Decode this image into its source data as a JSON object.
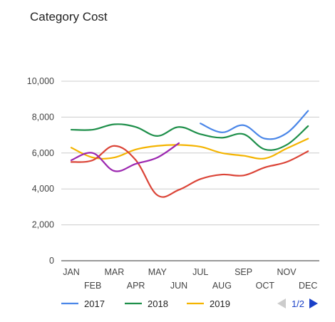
{
  "chart_data": {
    "type": "line",
    "title": "Category Cost",
    "categories": [
      "JAN",
      "FEB",
      "MAR",
      "APR",
      "MAY",
      "JUN",
      "JUL",
      "AUG",
      "SEP",
      "OCT",
      "NOV",
      "DEC"
    ],
    "ylim": [
      0,
      10000
    ],
    "yticks": [
      0,
      2000,
      4000,
      6000,
      8000,
      10000
    ],
    "ytick_labels": [
      "0",
      "2,000",
      "4,000",
      "6,000",
      "8,000",
      "10,000"
    ],
    "grid": true,
    "legend_position": "bottom",
    "series": [
      {
        "name": "2017",
        "color": "#4a86e8",
        "values": [
          null,
          null,
          null,
          null,
          null,
          null,
          7650,
          7150,
          7550,
          6800,
          7100,
          8350
        ]
      },
      {
        "name": "2018",
        "color": "#1e8f4a",
        "values": [
          7300,
          7300,
          7600,
          7450,
          6950,
          7450,
          7050,
          6850,
          7050,
          6200,
          6450,
          7500
        ]
      },
      {
        "name": "2019",
        "color": "#f4b400",
        "values": [
          6300,
          5750,
          5750,
          6200,
          6400,
          6450,
          6350,
          6000,
          5850,
          5700,
          6250,
          6800
        ]
      },
      {
        "name": "",
        "color": "#db4437",
        "values": [
          5500,
          5600,
          6400,
          5600,
          3650,
          3950,
          4550,
          4800,
          4750,
          5200,
          5500,
          6100
        ]
      },
      {
        "name": "",
        "color": "#9c27b0",
        "values": [
          5600,
          6000,
          5000,
          5400,
          5750,
          6550,
          null,
          null,
          null,
          null,
          null,
          null
        ]
      }
    ],
    "legend_page": "1/2",
    "legend_visible_series": 3
  }
}
